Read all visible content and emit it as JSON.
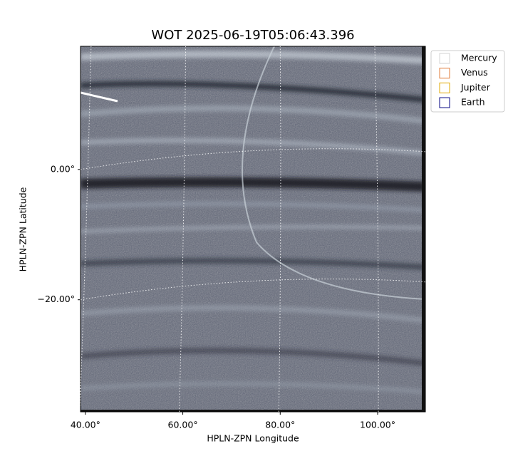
{
  "chart_data": {
    "type": "image",
    "title": "WOT 2025-06-19T05:06:43.396",
    "x_label": "HPLN-ZPN Longitude",
    "y_label": "HPLN-ZPN Latitude",
    "xlim": [
      39,
      109.8
    ],
    "ylim": [
      -37.2,
      18.9
    ],
    "xticks": [
      {
        "value": 40,
        "label": "40.00°"
      },
      {
        "value": 60,
        "label": "60.00°"
      },
      {
        "value": 80,
        "label": "80.00°"
      },
      {
        "value": 100,
        "label": "100.00°"
      }
    ],
    "yticks": [
      {
        "value": 0,
        "label": "0.00°"
      },
      {
        "value": -20,
        "label": "−20.00°"
      }
    ],
    "grid": true,
    "legend": [
      {
        "name": "Mercury",
        "color": "#d3d3d3"
      },
      {
        "name": "Venus",
        "color": "#e07b39"
      },
      {
        "name": "Jupiter",
        "color": "#e0a800"
      },
      {
        "name": "Earth",
        "color": "#000080"
      }
    ]
  }
}
